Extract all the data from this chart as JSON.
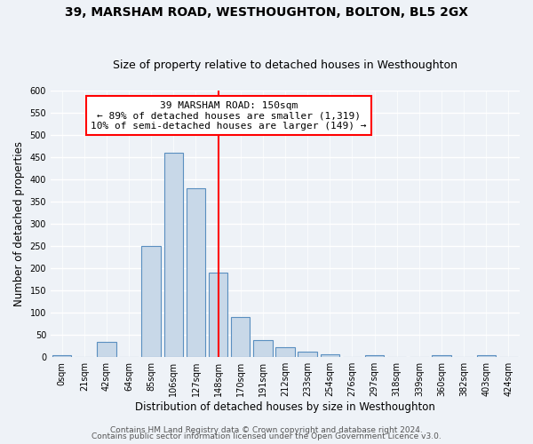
{
  "title": "39, MARSHAM ROAD, WESTHOUGHTON, BOLTON, BL5 2GX",
  "subtitle": "Size of property relative to detached houses in Westhoughton",
  "xlabel": "Distribution of detached houses by size in Westhoughton",
  "ylabel": "Number of detached properties",
  "bin_labels": [
    "0sqm",
    "21sqm",
    "42sqm",
    "64sqm",
    "85sqm",
    "106sqm",
    "127sqm",
    "148sqm",
    "170sqm",
    "191sqm",
    "212sqm",
    "233sqm",
    "254sqm",
    "276sqm",
    "297sqm",
    "318sqm",
    "339sqm",
    "360sqm",
    "382sqm",
    "403sqm",
    "424sqm"
  ],
  "bar_values": [
    5,
    0,
    35,
    0,
    250,
    460,
    380,
    190,
    90,
    38,
    22,
    12,
    7,
    0,
    5,
    0,
    0,
    5,
    0,
    5,
    0
  ],
  "bar_color": "#c8d8e8",
  "bar_edge_color": "#5a8fc0",
  "red_line_index": 7,
  "annotation_line1": "39 MARSHAM ROAD: 150sqm",
  "annotation_line2": "← 89% of detached houses are smaller (1,319)",
  "annotation_line3": "10% of semi-detached houses are larger (149) →",
  "annotation_box_color": "white",
  "annotation_box_edge_color": "red",
  "red_line_color": "red",
  "ylim": [
    0,
    600
  ],
  "yticks": [
    0,
    50,
    100,
    150,
    200,
    250,
    300,
    350,
    400,
    450,
    500,
    550,
    600
  ],
  "footer_line1": "Contains HM Land Registry data © Crown copyright and database right 2024.",
  "footer_line2": "Contains public sector information licensed under the Open Government Licence v3.0.",
  "bg_color": "#eef2f7",
  "grid_color": "white",
  "title_fontsize": 10,
  "subtitle_fontsize": 9,
  "axis_label_fontsize": 8.5,
  "tick_fontsize": 7,
  "annotation_fontsize": 8,
  "footer_fontsize": 6.5
}
